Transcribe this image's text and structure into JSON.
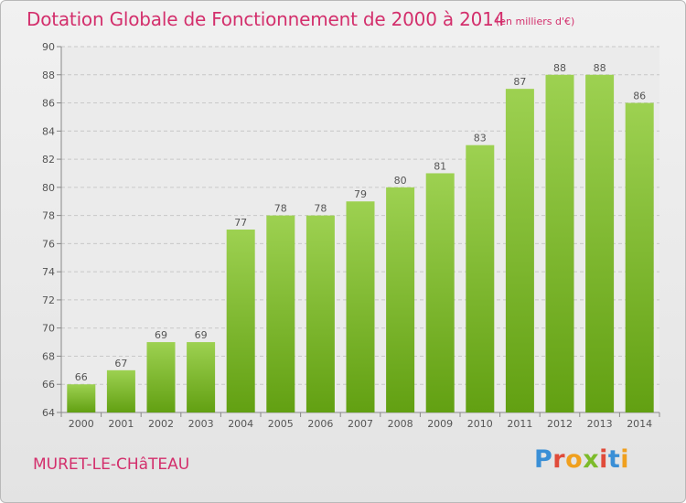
{
  "title": "Dotation Globale de Fonctionnement de 2000 à 2014",
  "unit_note": "(en milliers d'€)",
  "town": "MURET-LE-CHâTEAU",
  "logo": {
    "text": "Proxiti",
    "letters": [
      {
        "ch": "P",
        "color": "#3a8fd6"
      },
      {
        "ch": "r",
        "color": "#e04b3a"
      },
      {
        "ch": "o",
        "color": "#f0a01e"
      },
      {
        "ch": "x",
        "color": "#7cbb2a"
      },
      {
        "ch": "i",
        "color": "#e04b3a"
      },
      {
        "ch": "t",
        "color": "#3a8fd6"
      },
      {
        "ch": "i",
        "color": "#f0a01e"
      }
    ]
  },
  "colors": {
    "bar_light": "#9dd151",
    "bar_dark": "#62a012",
    "title": "#d32f6c",
    "grid": "#c8c8c8"
  },
  "chart_data": {
    "type": "bar",
    "title": "Dotation Globale de Fonctionnement de 2000 à 2014",
    "categories": [
      "2000",
      "2001",
      "2002",
      "2003",
      "2004",
      "2005",
      "2006",
      "2007",
      "2008",
      "2009",
      "2010",
      "2011",
      "2012",
      "2013",
      "2014"
    ],
    "values": [
      66,
      67,
      69,
      69,
      77,
      78,
      78,
      79,
      80,
      81,
      83,
      87,
      88,
      88,
      86
    ],
    "ylim": [
      64,
      90
    ],
    "yticks": [
      64,
      66,
      68,
      70,
      72,
      74,
      76,
      78,
      80,
      82,
      84,
      86,
      88,
      90
    ],
    "grid": true,
    "data_labels": true
  }
}
